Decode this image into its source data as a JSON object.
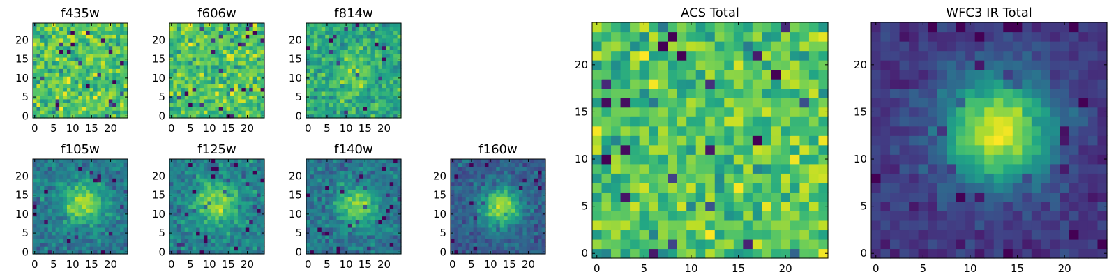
{
  "chart_data": [
    {
      "type": "heatmap",
      "title": "f435w",
      "xlabel": "",
      "ylabel": "",
      "grid": false,
      "xlim": [
        -0.5,
        24.5
      ],
      "ylim": [
        -0.5,
        24.5
      ],
      "xticks": [
        "0",
        "5",
        "10",
        "15",
        "20"
      ],
      "yticks": [
        "0",
        "5",
        "10",
        "15",
        "20"
      ],
      "nx": 25,
      "ny": 25,
      "colormap": "viridis",
      "seed": 11,
      "peak": null
    },
    {
      "type": "heatmap",
      "title": "f606w",
      "xlabel": "",
      "ylabel": "",
      "grid": false,
      "xlim": [
        -0.5,
        24.5
      ],
      "ylim": [
        -0.5,
        24.5
      ],
      "xticks": [
        "0",
        "5",
        "10",
        "15",
        "20"
      ],
      "yticks": [
        "0",
        "5",
        "10",
        "15",
        "20"
      ],
      "nx": 25,
      "ny": 25,
      "colormap": "viridis",
      "seed": 23,
      "peak": null
    },
    {
      "type": "heatmap",
      "title": "f814w",
      "xlabel": "",
      "ylabel": "",
      "grid": false,
      "xlim": [
        -0.5,
        24.5
      ],
      "ylim": [
        -0.5,
        24.5
      ],
      "xticks": [
        "0",
        "5",
        "10",
        "15",
        "20"
      ],
      "yticks": [
        "0",
        "5",
        "10",
        "15",
        "20"
      ],
      "nx": 25,
      "ny": 25,
      "colormap": "viridis",
      "seed": 37,
      "peak": {
        "x": 13,
        "y": 12,
        "sigma": 4,
        "amp": 0.12
      }
    },
    {
      "type": "heatmap",
      "title": "f105w",
      "xlabel": "",
      "ylabel": "",
      "grid": false,
      "xlim": [
        -0.5,
        24.5
      ],
      "ylim": [
        -0.5,
        24.5
      ],
      "xticks": [
        "0",
        "5",
        "10",
        "15",
        "20"
      ],
      "yticks": [
        "0",
        "5",
        "10",
        "15",
        "20"
      ],
      "nx": 25,
      "ny": 25,
      "colormap": "viridis",
      "seed": 41,
      "peak": {
        "x": 13,
        "y": 13,
        "sigma": 4,
        "amp": 0.35
      }
    },
    {
      "type": "heatmap",
      "title": "f125w",
      "xlabel": "",
      "ylabel": "",
      "grid": false,
      "xlim": [
        -0.5,
        24.5
      ],
      "ylim": [
        -0.5,
        24.5
      ],
      "xticks": [
        "0",
        "5",
        "10",
        "15",
        "20"
      ],
      "yticks": [
        "0",
        "5",
        "10",
        "15",
        "20"
      ],
      "nx": 25,
      "ny": 25,
      "colormap": "viridis",
      "seed": 53,
      "peak": {
        "x": 12,
        "y": 13,
        "sigma": 4,
        "amp": 0.3
      }
    },
    {
      "type": "heatmap",
      "title": "f140w",
      "xlabel": "",
      "ylabel": "",
      "grid": false,
      "xlim": [
        -0.5,
        24.5
      ],
      "ylim": [
        -0.5,
        24.5
      ],
      "xticks": [
        "0",
        "5",
        "10",
        "15",
        "20"
      ],
      "yticks": [
        "0",
        "5",
        "10",
        "15",
        "20"
      ],
      "nx": 25,
      "ny": 25,
      "colormap": "viridis",
      "seed": 67,
      "peak": {
        "x": 13,
        "y": 12,
        "sigma": 3.5,
        "amp": 0.35
      }
    },
    {
      "type": "heatmap",
      "title": "f160w",
      "xlabel": "",
      "ylabel": "",
      "grid": false,
      "xlim": [
        -0.5,
        24.5
      ],
      "ylim": [
        -0.5,
        24.5
      ],
      "xticks": [
        "0",
        "5",
        "10",
        "15",
        "20"
      ],
      "yticks": [
        "0",
        "5",
        "10",
        "15",
        "20"
      ],
      "nx": 25,
      "ny": 25,
      "colormap": "viridis",
      "seed": 79,
      "peak": {
        "x": 13,
        "y": 12,
        "sigma": 3.5,
        "amp": 0.45
      }
    },
    {
      "type": "heatmap",
      "title": "ACS Total",
      "xlabel": "",
      "ylabel": "",
      "grid": false,
      "xlim": [
        -0.5,
        24.5
      ],
      "ylim": [
        -0.5,
        24.5
      ],
      "xticks": [
        "0",
        "5",
        "10",
        "15",
        "20"
      ],
      "yticks": [
        "0",
        "5",
        "10",
        "15",
        "20"
      ],
      "nx": 25,
      "ny": 25,
      "colormap": "viridis",
      "seed": 97,
      "peak": null
    },
    {
      "type": "heatmap",
      "title": "WFC3 IR Total",
      "xlabel": "",
      "ylabel": "",
      "grid": false,
      "xlim": [
        -0.5,
        24.5
      ],
      "ylim": [
        -0.5,
        24.5
      ],
      "xticks": [
        "0",
        "5",
        "10",
        "15",
        "20"
      ],
      "yticks": [
        "0",
        "5",
        "10",
        "15",
        "20"
      ],
      "nx": 25,
      "ny": 25,
      "colormap": "viridis",
      "seed": 131,
      "peak": {
        "x": 13,
        "y": 13,
        "sigma": 4,
        "amp": 0.6
      }
    }
  ]
}
